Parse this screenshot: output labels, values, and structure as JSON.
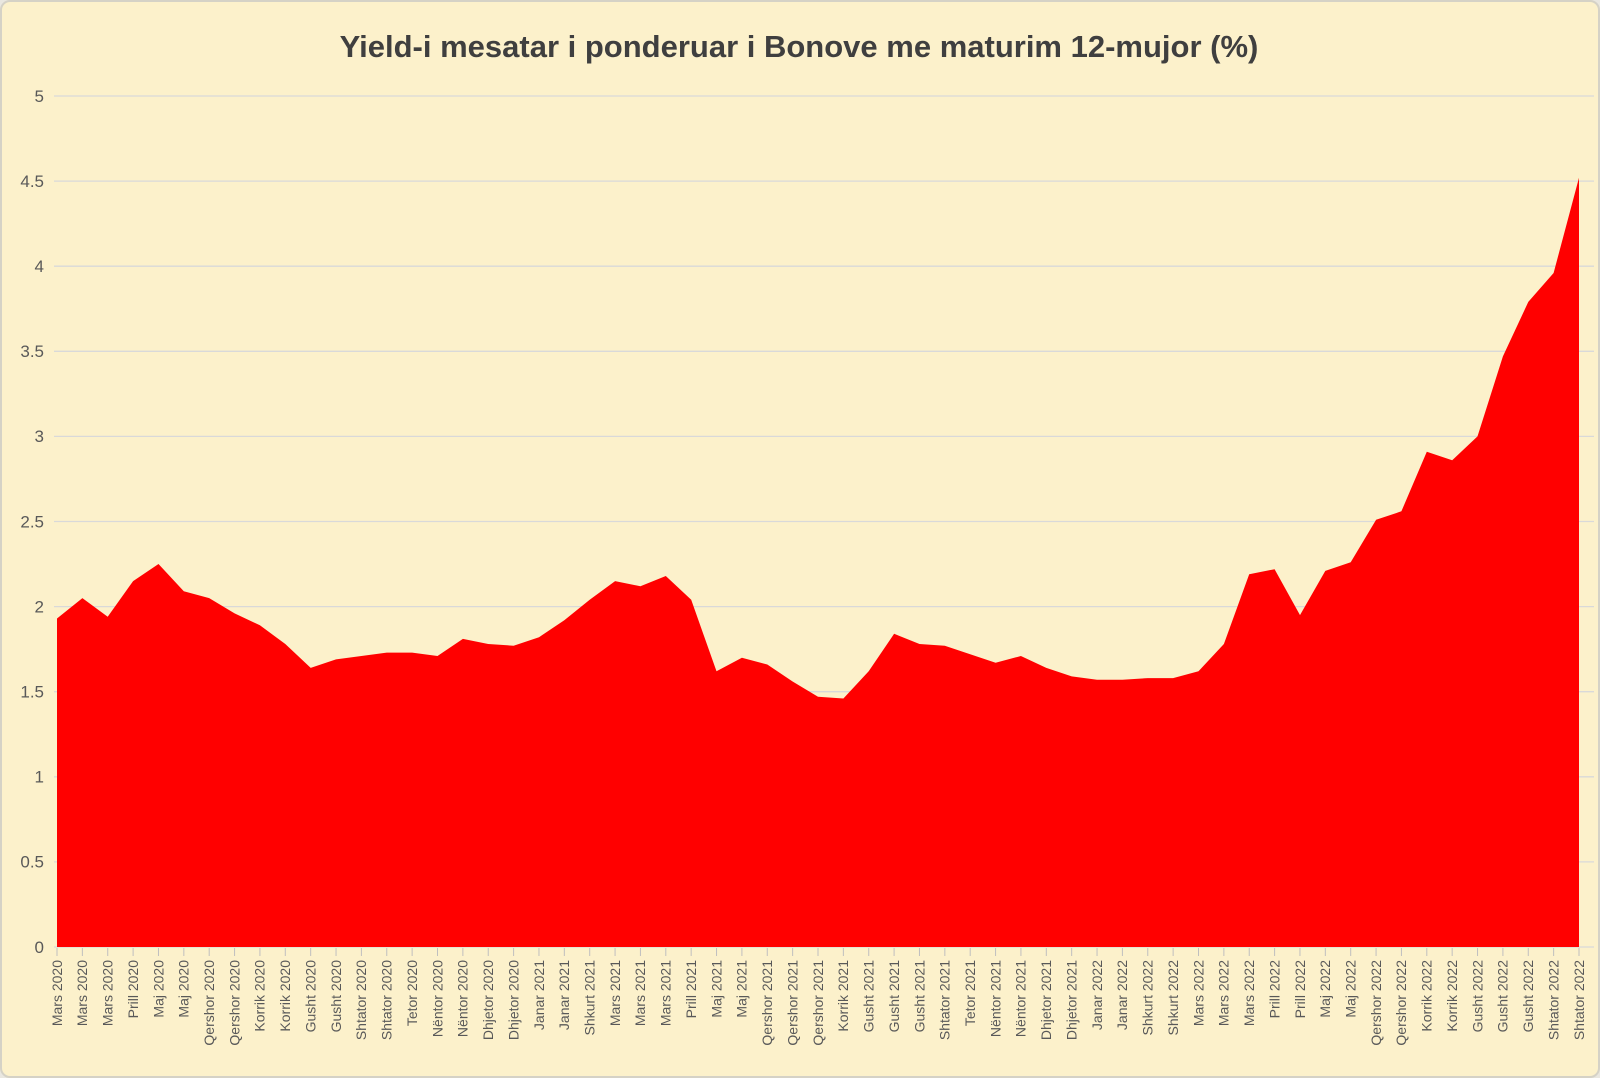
{
  "chart_data": {
    "type": "area",
    "title": "Yield-i mesatar i ponderuar i Bonove me maturim 12-mujor (%)",
    "x": [
      "Mars 2020",
      "Mars 2020",
      "Mars 2020",
      "Prill 2020",
      "Maj 2020",
      "Maj 2020",
      "Qershor 2020",
      "Qershor 2020",
      "Korrik 2020",
      "Korrik 2020",
      "Gusht 2020",
      "Gusht 2020",
      "Shtator 2020",
      "Shtator 2020",
      "Tetor 2020",
      "Nëntor 2020",
      "Nëntor 2020",
      "Dhjetor 2020",
      "Dhjetor 2020",
      "Janar 2021",
      "Janar 2021",
      "Shkurt 2021",
      "Mars 2021",
      "Mars 2021",
      "Mars 2021",
      "Prill 2021",
      "Maj 2021",
      "Maj 2021",
      "Qershor 2021",
      "Qershor 2021",
      "Qershor 2021",
      "Korrik 2021",
      "Gusht 2021",
      "Gusht 2021",
      "Gusht 2021",
      "Shtator 2021",
      "Tetor 2021",
      "Nëntor 2021",
      "Nëntor 2021",
      "Dhjetor 2021",
      "Dhjetor 2021",
      "Janar 2022",
      "Janar 2022",
      "Shkurt 2022",
      "Shkurt 2022",
      "Mars 2022",
      "Mars 2022",
      "Mars 2022",
      "Prill 2022",
      "Prill 2022",
      "Maj 2022",
      "Maj 2022",
      "Qershor 2022",
      "Qershor 2022",
      "Korrik 2022",
      "Korrik 2022",
      "Gusht 2022",
      "Gusht 2022",
      "Gusht 2022",
      "Shtator 2022",
      "Shtator 2022"
    ],
    "values": [
      1.93,
      2.05,
      1.94,
      2.15,
      2.25,
      2.09,
      2.05,
      1.96,
      1.89,
      1.78,
      1.64,
      1.69,
      1.71,
      1.73,
      1.73,
      1.71,
      1.81,
      1.78,
      1.77,
      1.82,
      1.92,
      2.04,
      2.15,
      2.12,
      2.18,
      2.04,
      1.62,
      1.7,
      1.66,
      1.56,
      1.47,
      1.46,
      1.62,
      1.84,
      1.78,
      1.77,
      1.72,
      1.67,
      1.71,
      1.64,
      1.59,
      1.57,
      1.57,
      1.58,
      1.58,
      1.62,
      1.78,
      2.19,
      2.22,
      1.95,
      2.21,
      2.26,
      2.51,
      2.56,
      2.91,
      2.86,
      3.0,
      3.47,
      3.79,
      3.96,
      4.52
    ],
    "xlabel": "",
    "ylabel": "",
    "ylim": [
      0,
      5
    ],
    "yticks": [
      "0",
      "0.5",
      "1",
      "1.5",
      "2",
      "2.5",
      "3",
      "3.5",
      "4",
      "4.5",
      "5"
    ],
    "grid": true,
    "legend": "none",
    "colors": {
      "area": "#ff0000",
      "background": "#fcf1cb",
      "gridline": "#d9d9d9",
      "tick": "#bfbfbf",
      "axis_text": "#595959",
      "title_text": "#3f3f3f",
      "border": "#d5d2c6"
    }
  }
}
